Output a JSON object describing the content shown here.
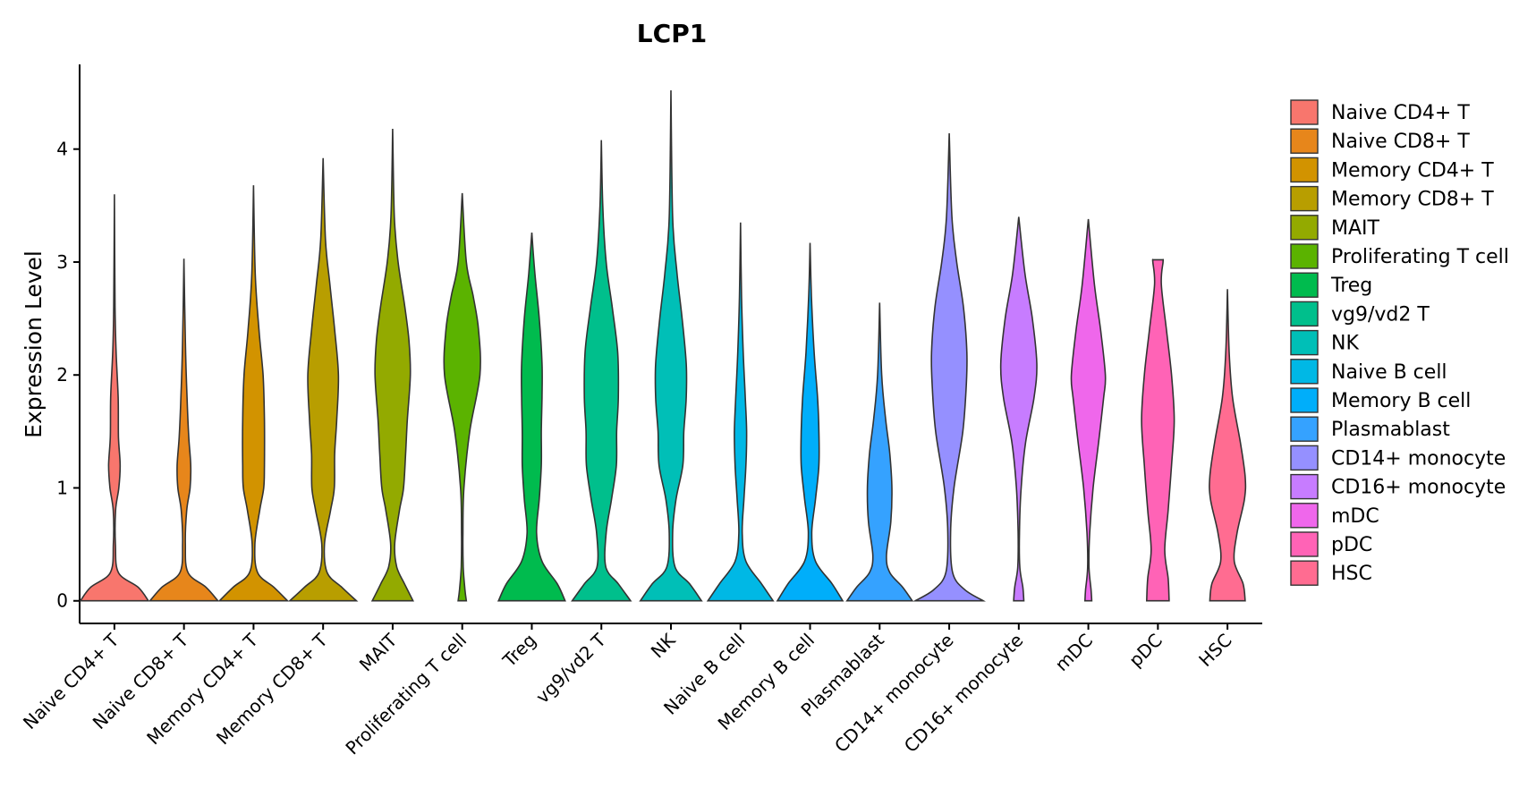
{
  "chart_data": {
    "type": "violin",
    "title": "LCP1",
    "xlabel": "",
    "ylabel": "Expression Level",
    "ylim": [
      -0.2,
      4.75
    ],
    "yticks": [
      0,
      1,
      2,
      3,
      4
    ],
    "legend_position": "right",
    "categories": [
      "Naive CD4+ T",
      "Naive CD8+ T",
      "Memory CD4+ T",
      "Memory CD8+ T",
      "MAIT",
      "Proliferating T cell",
      "Treg",
      "vg9/vd2 T",
      "NK",
      "Naive B cell",
      "Memory B cell",
      "Plasmablast",
      "CD14+ monocyte",
      "CD16+ monocyte",
      "mDC",
      "pDC",
      "HSC"
    ],
    "colors": [
      "#F8766D",
      "#E58700",
      "#C99800",
      "#A3A500",
      "#6BB100",
      "#00BA38",
      "#00BF7D",
      "#00C0AF",
      "#00BCD8",
      "#00B0F6",
      "#619CFF",
      "#B983FF",
      "#E76BF3",
      "#FD61D1",
      "#FF67A4",
      "#F8766D",
      "#E58700"
    ],
    "legend_colors": [
      "#F8766D",
      "#E7861B",
      "#D29300",
      "#B89E00",
      "#93AA00",
      "#5BB300",
      "#00BB4E",
      "#00BF8C",
      "#00BFB7",
      "#00B8E5",
      "#00AEFA",
      "#35A2FF",
      "#9590FF",
      "#C77CFF",
      "#EF67EB",
      "#FF63B6",
      "#FF6C91"
    ],
    "violins": [
      {
        "max": 3.6,
        "profile": [
          [
            0,
            1.0
          ],
          [
            0.12,
            0.7
          ],
          [
            0.25,
            0.12
          ],
          [
            0.5,
            0.03
          ],
          [
            0.8,
            0.035
          ],
          [
            1.0,
            0.13
          ],
          [
            1.2,
            0.17
          ],
          [
            1.45,
            0.12
          ],
          [
            1.8,
            0.11
          ],
          [
            2.2,
            0.05
          ],
          [
            2.6,
            0.02
          ],
          [
            3.6,
            0.0
          ]
        ]
      },
      {
        "max": 3.03,
        "profile": [
          [
            0,
            1.0
          ],
          [
            0.12,
            0.65
          ],
          [
            0.25,
            0.12
          ],
          [
            0.5,
            0.04
          ],
          [
            0.8,
            0.08
          ],
          [
            1.0,
            0.18
          ],
          [
            1.2,
            0.2
          ],
          [
            1.45,
            0.14
          ],
          [
            1.8,
            0.09
          ],
          [
            2.3,
            0.04
          ],
          [
            3.03,
            0.0
          ]
        ]
      },
      {
        "max": 3.68,
        "profile": [
          [
            0,
            1.0
          ],
          [
            0.12,
            0.6
          ],
          [
            0.25,
            0.12
          ],
          [
            0.5,
            0.04
          ],
          [
            0.8,
            0.18
          ],
          [
            1.0,
            0.3
          ],
          [
            1.2,
            0.32
          ],
          [
            1.6,
            0.32
          ],
          [
            2.0,
            0.28
          ],
          [
            2.4,
            0.16
          ],
          [
            2.9,
            0.05
          ],
          [
            3.68,
            0.0
          ]
        ]
      },
      {
        "max": 3.92,
        "profile": [
          [
            0,
            0.98
          ],
          [
            0.12,
            0.55
          ],
          [
            0.25,
            0.12
          ],
          [
            0.5,
            0.04
          ],
          [
            0.8,
            0.22
          ],
          [
            1.0,
            0.33
          ],
          [
            1.3,
            0.34
          ],
          [
            1.6,
            0.4
          ],
          [
            2.0,
            0.45
          ],
          [
            2.4,
            0.34
          ],
          [
            2.8,
            0.2
          ],
          [
            3.2,
            0.07
          ],
          [
            3.92,
            0.0
          ]
        ]
      },
      {
        "max": 4.18,
        "profile": [
          [
            0,
            0.6
          ],
          [
            0.15,
            0.35
          ],
          [
            0.3,
            0.12
          ],
          [
            0.5,
            0.06
          ],
          [
            0.8,
            0.2
          ],
          [
            1.0,
            0.32
          ],
          [
            1.3,
            0.38
          ],
          [
            1.6,
            0.43
          ],
          [
            2.0,
            0.52
          ],
          [
            2.3,
            0.48
          ],
          [
            2.6,
            0.36
          ],
          [
            3.0,
            0.16
          ],
          [
            3.4,
            0.05
          ],
          [
            4.18,
            0.0
          ]
        ]
      },
      {
        "max": 3.61,
        "profile": [
          [
            0,
            0.12
          ],
          [
            0.1,
            0.08
          ],
          [
            0.3,
            0.03
          ],
          [
            0.6,
            0.02
          ],
          [
            1.0,
            0.05
          ],
          [
            1.5,
            0.22
          ],
          [
            2.0,
            0.52
          ],
          [
            2.4,
            0.48
          ],
          [
            2.7,
            0.32
          ],
          [
            3.0,
            0.12
          ],
          [
            3.61,
            0.0
          ]
        ]
      },
      {
        "max": 3.26,
        "profile": [
          [
            0,
            0.98
          ],
          [
            0.15,
            0.75
          ],
          [
            0.35,
            0.3
          ],
          [
            0.6,
            0.14
          ],
          [
            0.9,
            0.22
          ],
          [
            1.2,
            0.28
          ],
          [
            1.5,
            0.28
          ],
          [
            1.8,
            0.3
          ],
          [
            2.1,
            0.3
          ],
          [
            2.5,
            0.22
          ],
          [
            2.9,
            0.09
          ],
          [
            3.26,
            0.0
          ]
        ]
      },
      {
        "max": 4.08,
        "profile": [
          [
            0,
            0.86
          ],
          [
            0.15,
            0.5
          ],
          [
            0.3,
            0.13
          ],
          [
            0.6,
            0.14
          ],
          [
            0.9,
            0.3
          ],
          [
            1.2,
            0.44
          ],
          [
            1.5,
            0.45
          ],
          [
            1.8,
            0.5
          ],
          [
            2.2,
            0.48
          ],
          [
            2.6,
            0.32
          ],
          [
            3.0,
            0.14
          ],
          [
            3.5,
            0.04
          ],
          [
            4.08,
            0.0
          ]
        ]
      },
      {
        "max": 4.52,
        "profile": [
          [
            0,
            0.9
          ],
          [
            0.15,
            0.55
          ],
          [
            0.3,
            0.12
          ],
          [
            0.6,
            0.05
          ],
          [
            0.9,
            0.15
          ],
          [
            1.2,
            0.35
          ],
          [
            1.5,
            0.38
          ],
          [
            1.8,
            0.45
          ],
          [
            2.1,
            0.45
          ],
          [
            2.5,
            0.33
          ],
          [
            2.9,
            0.18
          ],
          [
            3.4,
            0.05
          ],
          [
            4.52,
            0.0
          ]
        ]
      },
      {
        "max": 3.35,
        "profile": [
          [
            0,
            0.96
          ],
          [
            0.15,
            0.62
          ],
          [
            0.35,
            0.16
          ],
          [
            0.6,
            0.05
          ],
          [
            0.9,
            0.1
          ],
          [
            1.2,
            0.16
          ],
          [
            1.5,
            0.18
          ],
          [
            1.8,
            0.14
          ],
          [
            2.2,
            0.08
          ],
          [
            2.7,
            0.03
          ],
          [
            3.35,
            0.0
          ]
        ]
      },
      {
        "max": 3.17,
        "profile": [
          [
            0,
            0.96
          ],
          [
            0.15,
            0.65
          ],
          [
            0.35,
            0.16
          ],
          [
            0.6,
            0.05
          ],
          [
            0.9,
            0.16
          ],
          [
            1.2,
            0.26
          ],
          [
            1.5,
            0.26
          ],
          [
            1.8,
            0.22
          ],
          [
            2.2,
            0.12
          ],
          [
            2.7,
            0.04
          ],
          [
            3.17,
            0.0
          ]
        ]
      },
      {
        "max": 2.64,
        "profile": [
          [
            0,
            0.96
          ],
          [
            0.12,
            0.68
          ],
          [
            0.25,
            0.3
          ],
          [
            0.4,
            0.2
          ],
          [
            0.7,
            0.33
          ],
          [
            1.0,
            0.36
          ],
          [
            1.3,
            0.3
          ],
          [
            1.6,
            0.18
          ],
          [
            2.0,
            0.06
          ],
          [
            2.64,
            0.0
          ]
        ]
      },
      {
        "max": 4.14,
        "profile": [
          [
            0,
            1.0
          ],
          [
            0.1,
            0.45
          ],
          [
            0.25,
            0.1
          ],
          [
            0.6,
            0.04
          ],
          [
            1.0,
            0.14
          ],
          [
            1.5,
            0.4
          ],
          [
            1.9,
            0.5
          ],
          [
            2.2,
            0.52
          ],
          [
            2.6,
            0.42
          ],
          [
            3.0,
            0.22
          ],
          [
            3.4,
            0.08
          ],
          [
            4.14,
            0.0
          ]
        ]
      },
      {
        "max": 3.4,
        "profile": [
          [
            0,
            0.15
          ],
          [
            0.12,
            0.12
          ],
          [
            0.3,
            0.03
          ],
          [
            0.6,
            0.02
          ],
          [
            1.0,
            0.07
          ],
          [
            1.4,
            0.2
          ],
          [
            1.8,
            0.45
          ],
          [
            2.1,
            0.53
          ],
          [
            2.5,
            0.4
          ],
          [
            2.9,
            0.18
          ],
          [
            3.4,
            0.0
          ]
        ]
      },
      {
        "max": 3.38,
        "profile": [
          [
            0,
            0.1
          ],
          [
            0.1,
            0.08
          ],
          [
            0.3,
            0.02
          ],
          [
            0.6,
            0.04
          ],
          [
            1.0,
            0.14
          ],
          [
            1.4,
            0.3
          ],
          [
            1.8,
            0.45
          ],
          [
            2.0,
            0.5
          ],
          [
            2.4,
            0.36
          ],
          [
            2.8,
            0.18
          ],
          [
            3.38,
            0.0
          ]
        ]
      },
      {
        "max": 3.02,
        "profile": [
          [
            0,
            0.33
          ],
          [
            0.2,
            0.3
          ],
          [
            0.45,
            0.2
          ],
          [
            0.8,
            0.3
          ],
          [
            1.2,
            0.4
          ],
          [
            1.6,
            0.48
          ],
          [
            2.0,
            0.4
          ],
          [
            2.4,
            0.25
          ],
          [
            2.8,
            0.1
          ],
          [
            3.0,
            0.15
          ],
          [
            3.02,
            0.15
          ]
        ]
      },
      {
        "max": 2.76,
        "profile": [
          [
            0,
            0.52
          ],
          [
            0.15,
            0.46
          ],
          [
            0.35,
            0.2
          ],
          [
            0.6,
            0.28
          ],
          [
            0.9,
            0.5
          ],
          [
            1.1,
            0.52
          ],
          [
            1.4,
            0.38
          ],
          [
            1.8,
            0.15
          ],
          [
            2.2,
            0.05
          ],
          [
            2.76,
            0.0
          ]
        ]
      }
    ]
  }
}
